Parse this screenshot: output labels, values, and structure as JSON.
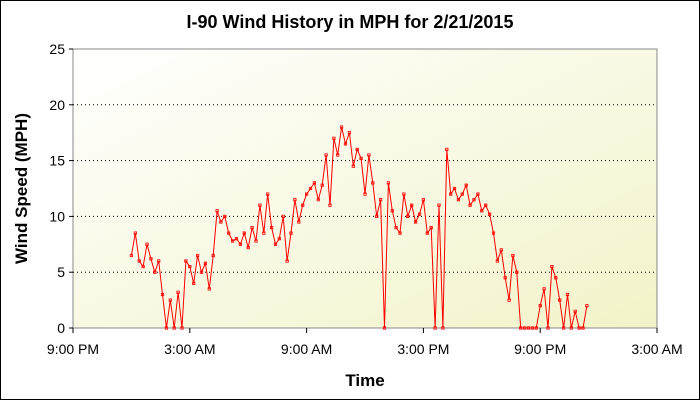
{
  "chart_data": {
    "type": "line",
    "title": "I-90 Wind History in MPH for 2/21/2015",
    "xlabel": "Time",
    "ylabel": "Wind Speed (MPH)",
    "x_unit": "hours since 9:00 PM (2/20/2015)",
    "xlim": [
      0,
      30
    ],
    "ylim": [
      0,
      25
    ],
    "x_ticks": [
      {
        "value": 0,
        "label": "9:00 PM"
      },
      {
        "value": 6,
        "label": "3:00 AM"
      },
      {
        "value": 12,
        "label": "9:00 AM"
      },
      {
        "value": 18,
        "label": "3:00 PM"
      },
      {
        "value": 24,
        "label": "9:00 PM"
      },
      {
        "value": 30,
        "label": "3:00 AM"
      }
    ],
    "y_ticks": [
      0,
      5,
      10,
      15,
      20,
      25
    ],
    "grid": "horizontal dotted",
    "legend": "none",
    "series": [
      {
        "color": "#ff0000",
        "x": [
          3.0,
          3.2,
          3.4,
          3.6,
          3.8,
          4.0,
          4.2,
          4.4,
          4.6,
          4.8,
          5.0,
          5.2,
          5.4,
          5.6,
          5.8,
          6.0,
          6.2,
          6.4,
          6.6,
          6.8,
          7.0,
          7.2,
          7.4,
          7.6,
          7.8,
          8.0,
          8.2,
          8.4,
          8.6,
          8.8,
          9.0,
          9.2,
          9.4,
          9.6,
          9.8,
          10.0,
          10.2,
          10.4,
          10.6,
          10.8,
          11.0,
          11.2,
          11.4,
          11.6,
          11.8,
          12.0,
          12.2,
          12.4,
          12.6,
          12.8,
          13.0,
          13.2,
          13.4,
          13.6,
          13.8,
          14.0,
          14.2,
          14.4,
          14.6,
          14.8,
          15.0,
          15.2,
          15.4,
          15.6,
          15.8,
          16.0,
          16.2,
          16.4,
          16.6,
          16.8,
          17.0,
          17.2,
          17.4,
          17.6,
          17.8,
          18.0,
          18.2,
          18.4,
          18.6,
          18.8,
          19.0,
          19.2,
          19.4,
          19.6,
          19.8,
          20.0,
          20.2,
          20.4,
          20.6,
          20.8,
          21.0,
          21.2,
          21.4,
          21.6,
          21.8,
          22.0,
          22.2,
          22.4,
          22.6,
          22.8,
          23.0,
          23.2,
          23.4,
          23.6,
          23.8,
          24.0,
          24.2,
          24.4,
          24.6,
          24.8,
          25.0,
          25.2,
          25.4,
          25.6,
          25.8,
          26.0,
          26.2,
          26.4
        ],
        "y": [
          6.5,
          8.5,
          6.0,
          5.5,
          7.5,
          6.2,
          5.0,
          6.0,
          3.0,
          0.0,
          2.5,
          0.0,
          3.2,
          0.0,
          6.0,
          5.5,
          4.0,
          6.5,
          5.0,
          5.8,
          3.5,
          6.5,
          10.5,
          9.5,
          10.0,
          8.5,
          7.8,
          8.0,
          7.5,
          8.5,
          7.2,
          9.0,
          7.8,
          11.0,
          8.5,
          12.0,
          9.0,
          7.5,
          8.0,
          10.0,
          6.0,
          8.5,
          11.5,
          9.5,
          11.0,
          12.0,
          12.5,
          13.0,
          11.5,
          12.8,
          15.5,
          11.0,
          17.0,
          15.5,
          18.0,
          16.5,
          17.5,
          14.5,
          16.0,
          15.2,
          12.0,
          15.5,
          13.0,
          10.0,
          11.5,
          0.0,
          13.0,
          10.5,
          9.0,
          8.5,
          12.0,
          10.0,
          11.0,
          9.5,
          10.2,
          11.5,
          8.5,
          9.0,
          0.0,
          11.0,
          0.0,
          16.0,
          12.0,
          12.5,
          11.5,
          12.0,
          12.8,
          11.0,
          11.5,
          12.0,
          10.5,
          11.0,
          10.2,
          8.5,
          6.0,
          7.0,
          4.5,
          2.5,
          6.5,
          5.0,
          0.0,
          0.0,
          0.0,
          0.0,
          0.0,
          2.0,
          3.5,
          0.0,
          5.5,
          4.5,
          2.5,
          0.0,
          3.0,
          0.0,
          1.5,
          0.0,
          0.0,
          2.0
        ]
      }
    ]
  }
}
